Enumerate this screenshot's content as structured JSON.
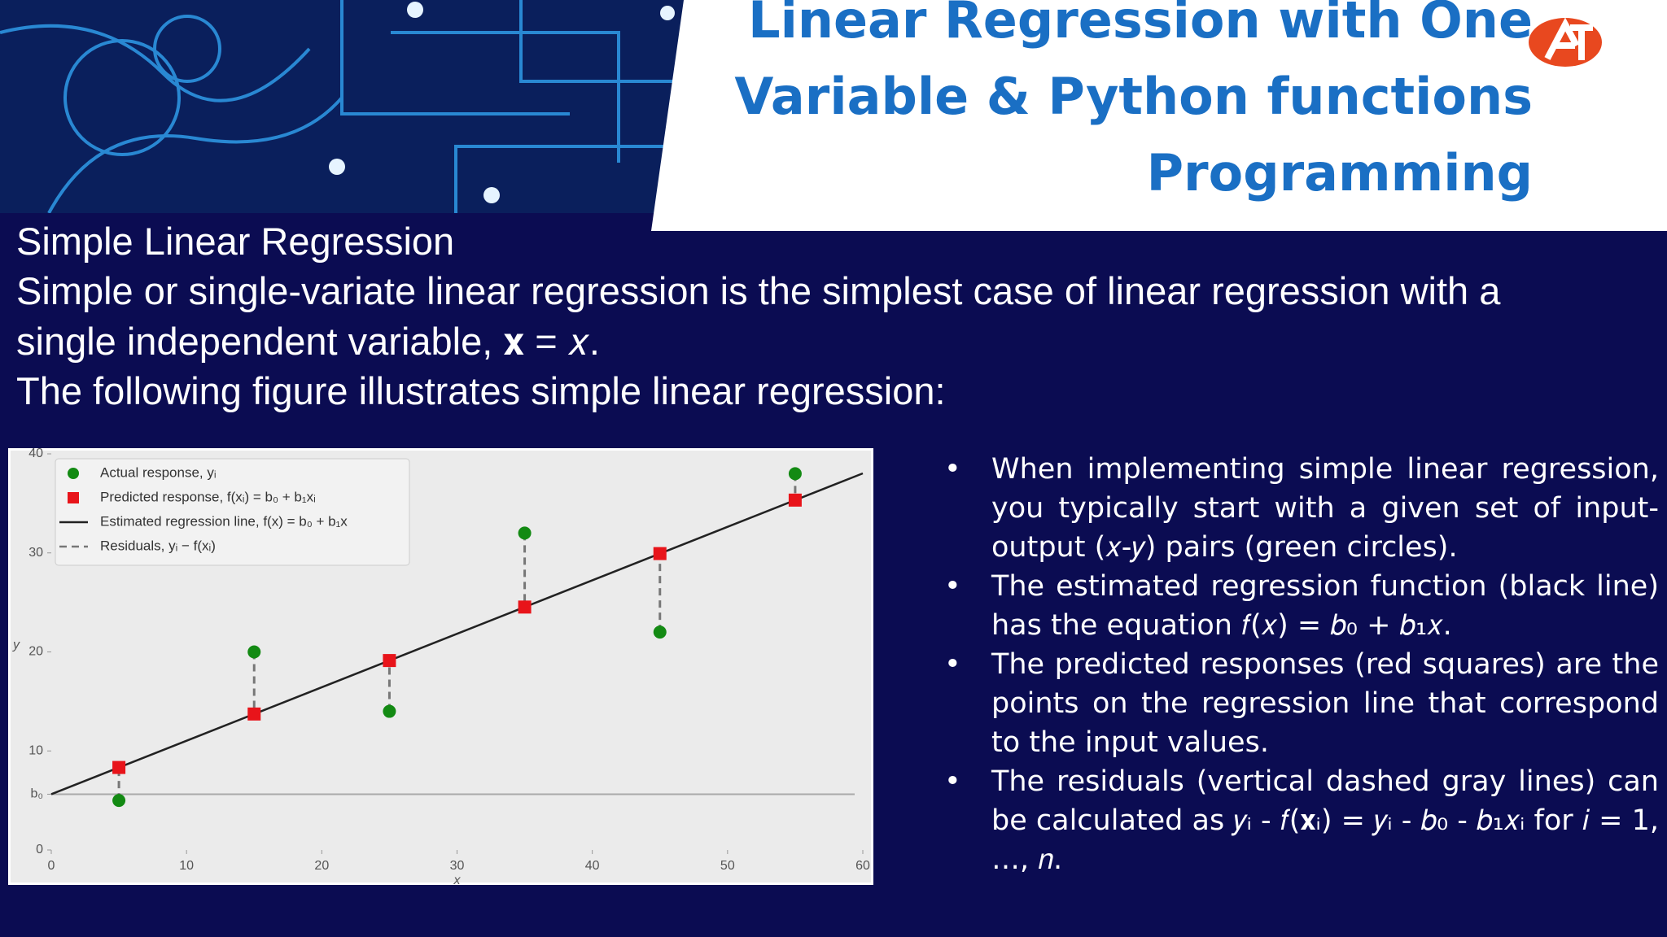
{
  "header": {
    "title_lines": [
      "Linear Regression with One",
      "Variable & Python functions",
      "Programming"
    ]
  },
  "body": {
    "heading": "Simple Linear Regression",
    "lines": [
      "Simple or single-variate linear regression is the simplest case of linear regression with a",
      "single independent variable, 𝐱 = 𝑥.",
      "The following figure illustrates simple linear regression:"
    ],
    "bullets": [
      "When implementing simple linear regression, you typically start with a given set of input-output (𝑥-𝑦) pairs (green circles).",
      "The estimated regression function (black line) has the equation 𝑓(𝑥) = 𝑏₀ + 𝑏₁𝑥.",
      "The predicted responses (red squares) are the points on the regression line that correspond to the input values.",
      "The residuals (vertical dashed gray lines) can be calculated as 𝑦ᵢ - 𝑓(𝐱ᵢ) = 𝑦ᵢ - 𝑏₀ - 𝑏₁𝑥ᵢ for 𝑖 = 1, …, 𝑛."
    ]
  },
  "chart_data": {
    "type": "scatter",
    "x_label": "x",
    "y_label": "y",
    "x": [
      5,
      15,
      25,
      35,
      45,
      55
    ],
    "series": [
      {
        "name": "Actual response, yᵢ",
        "color": "#138a13",
        "values": [
          5,
          20,
          14,
          32,
          22,
          38
        ]
      },
      {
        "name": "Predicted response, f(xᵢ) = b₀ + b₁xᵢ",
        "color": "#e8141a",
        "values": [
          8.33,
          13.73,
          19.13,
          24.53,
          29.93,
          35.33
        ]
      }
    ],
    "regression_line": {
      "name": "Estimated regression line, f(x) = b₀ + b₁x",
      "color": "#222222",
      "x": [
        0,
        60
      ],
      "values": [
        5.63,
        38.03
      ]
    },
    "residuals": {
      "name": "Residuals, yᵢ − f(xᵢ)",
      "color": "#777777"
    },
    "xlim": [
      0,
      60
    ],
    "ylim": [
      0,
      40
    ],
    "xticks": [
      0,
      10,
      20,
      30,
      40,
      50,
      60
    ],
    "yticks": [
      0,
      {
        "value": 5.63,
        "label": "b₀"
      },
      10,
      20,
      30,
      40
    ]
  }
}
